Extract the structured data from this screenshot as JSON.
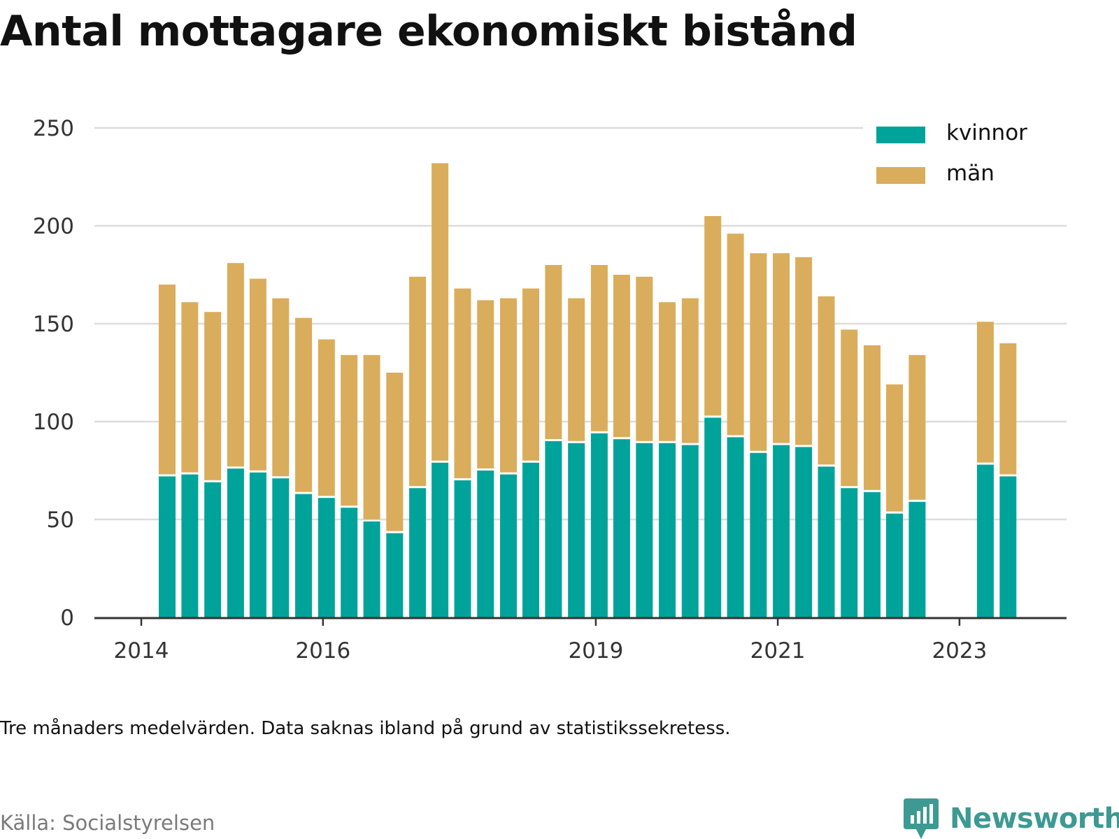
{
  "title": "Antal mottagare ekonomiskt bistånd",
  "note": "Tre månaders medelvärden. Data saknas ibland på grund av statistikssekretess.",
  "source": "Källa: Socialstyrelsen",
  "brand": "Newsworthy",
  "colors": {
    "kvinnor": "#00a39a",
    "man": "#d9ad5b",
    "grid": "#dcdcdc",
    "axis": "#333333",
    "brand": "#3c9a92"
  },
  "chart_data": {
    "type": "bar",
    "stacked": true,
    "x_start": "2014-01-01",
    "x_end": "2023-12-01",
    "ylim": [
      0,
      250
    ],
    "yticks": [
      0,
      50,
      100,
      150,
      200,
      250
    ],
    "xticks": [
      {
        "label": "2014",
        "date": "2014-01-01"
      },
      {
        "label": "2016",
        "date": "2016-01-01"
      },
      {
        "label": "2019",
        "date": "2019-01-01"
      },
      {
        "label": "2021",
        "date": "2021-01-01"
      },
      {
        "label": "2023",
        "date": "2023-01-01"
      }
    ],
    "grid": true,
    "legend_position": "top-right",
    "categories": [
      "2014-04",
      "2014-07",
      "2014-10",
      "2015-01",
      "2015-04",
      "2015-07",
      "2015-10",
      "2016-01",
      "2016-04",
      "2016-07",
      "2016-10",
      "2017-01",
      "2017-04",
      "2017-07",
      "2017-10",
      "2018-01",
      "2018-04",
      "2018-07",
      "2018-10",
      "2019-01",
      "2019-04",
      "2019-07",
      "2019-10",
      "2020-01",
      "2020-04",
      "2020-07",
      "2020-10",
      "2021-01",
      "2021-04",
      "2021-07",
      "2021-10",
      "2022-01",
      "2022-04",
      "2022-07",
      "2022-10",
      "2023-01",
      "2023-04",
      "2023-07"
    ],
    "series": [
      {
        "name": "kvinnor",
        "color": "#00a39a",
        "values": [
          72,
          73,
          69,
          76,
          74,
          71,
          63,
          61,
          56,
          49,
          43,
          66,
          79,
          70,
          75,
          73,
          79,
          90,
          89,
          94,
          91,
          89,
          89,
          88,
          102,
          92,
          84,
          88,
          87,
          77,
          66,
          64,
          53,
          59,
          null,
          null,
          78,
          72
        ]
      },
      {
        "name": "män",
        "color": "#d9ad5b",
        "values": [
          98,
          88,
          87,
          105,
          99,
          92,
          90,
          81,
          78,
          85,
          82,
          108,
          153,
          98,
          87,
          90,
          89,
          90,
          74,
          86,
          84,
          85,
          72,
          75,
          103,
          104,
          102,
          98,
          97,
          87,
          81,
          75,
          66,
          75,
          null,
          null,
          73,
          68
        ]
      }
    ]
  }
}
